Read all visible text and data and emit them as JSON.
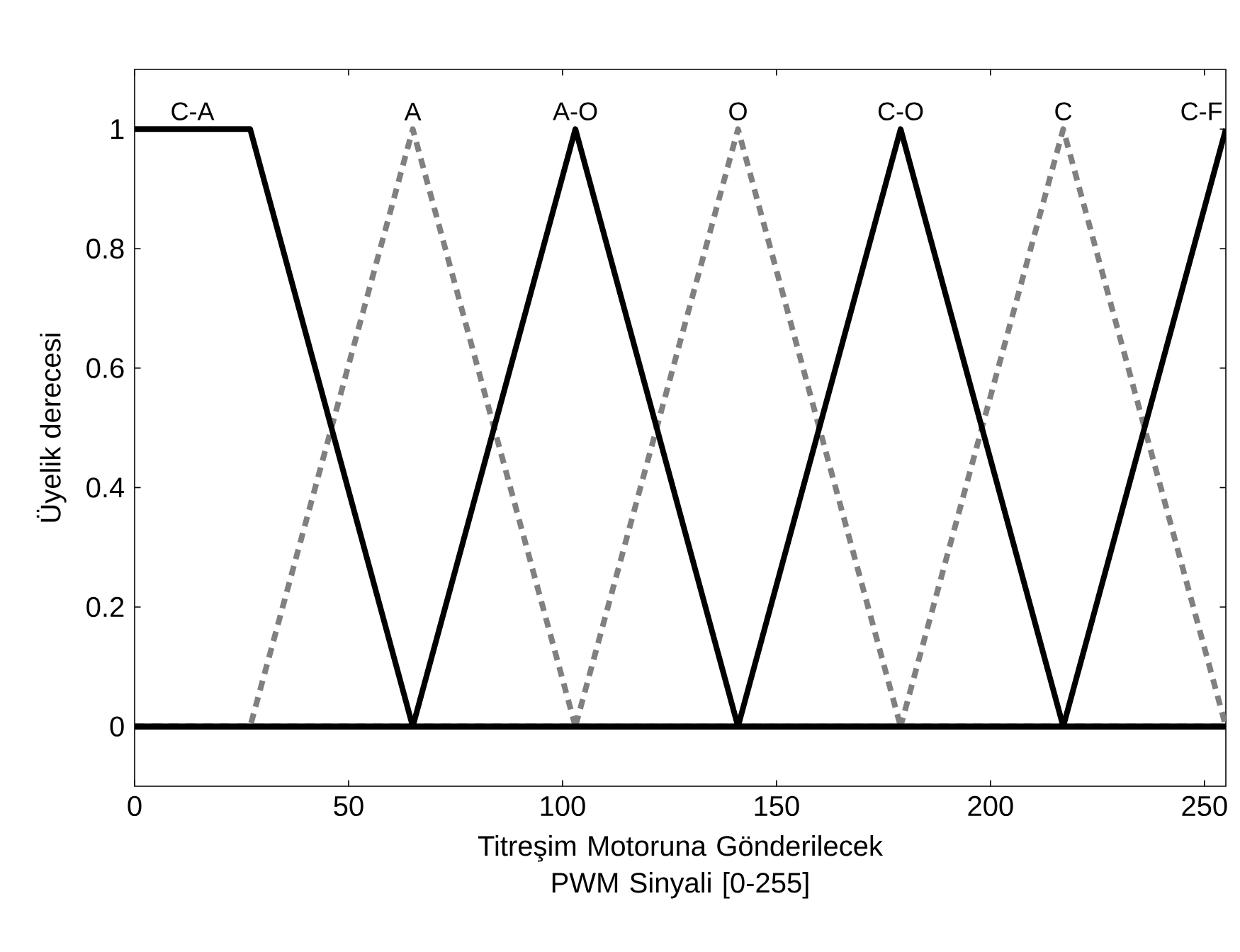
{
  "chart_data": {
    "type": "line",
    "xlabel": "Titreşim Motoruna Gönderilecek PWM Sinyali [0-255]",
    "ylabel": "Üyelik derecesi",
    "xlim": [
      0,
      255
    ],
    "ylim": [
      -0.1,
      1.1
    ],
    "xticks": [
      0,
      50,
      100,
      150,
      200,
      250
    ],
    "yticks": [
      0,
      0.2,
      0.4,
      0.6,
      0.8,
      1
    ],
    "grid": false,
    "legend": "top",
    "marker": "none",
    "series": [
      {
        "name": "A",
        "color": "#808080",
        "line_style": "dashed",
        "x": [
          0,
          27,
          65,
          103,
          255
        ],
        "values": [
          0,
          0,
          1,
          0,
          0
        ]
      },
      {
        "name": "O",
        "color": "#808080",
        "line_style": "dashed",
        "x": [
          0,
          103,
          141,
          179,
          255
        ],
        "values": [
          0,
          0,
          1,
          0,
          0
        ]
      },
      {
        "name": "C",
        "color": "#808080",
        "line_style": "dashed",
        "x": [
          0,
          179,
          217,
          255
        ],
        "values": [
          0,
          0,
          1,
          0
        ]
      },
      {
        "name": "C-A",
        "color": "#000000",
        "line_style": "solid",
        "x": [
          0,
          27,
          65,
          255
        ],
        "values": [
          1,
          1,
          0,
          0
        ]
      },
      {
        "name": "A-O",
        "color": "#000000",
        "line_style": "solid",
        "x": [
          0,
          65,
          103,
          141,
          255
        ],
        "values": [
          0,
          0,
          1,
          0,
          0
        ]
      },
      {
        "name": "C-O",
        "color": "#000000",
        "line_style": "solid",
        "x": [
          0,
          141,
          179,
          217,
          255
        ],
        "values": [
          0,
          0,
          1,
          0,
          0
        ]
      },
      {
        "name": "C-F",
        "color": "#000000",
        "line_style": "solid",
        "x": [
          0,
          217,
          255
        ],
        "values": [
          0,
          0,
          1
        ]
      }
    ]
  }
}
